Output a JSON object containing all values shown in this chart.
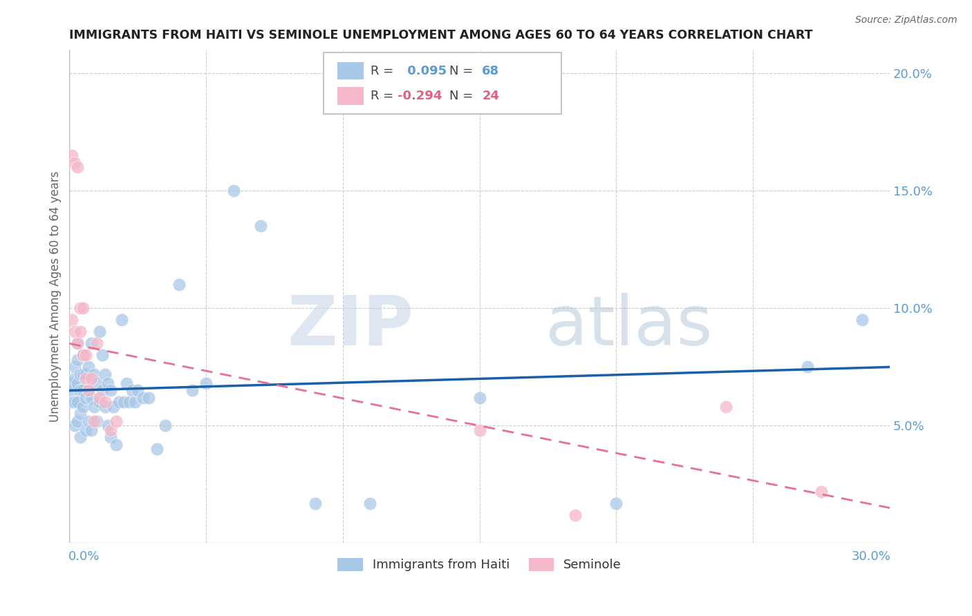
{
  "title": "IMMIGRANTS FROM HAITI VS SEMINOLE UNEMPLOYMENT AMONG AGES 60 TO 64 YEARS CORRELATION CHART",
  "source": "Source: ZipAtlas.com",
  "ylabel": "Unemployment Among Ages 60 to 64 years",
  "xmin": 0.0,
  "xmax": 0.3,
  "ymin": 0.0,
  "ymax": 0.21,
  "yticks": [
    0.05,
    0.1,
    0.15,
    0.2
  ],
  "ytick_labels": [
    "5.0%",
    "10.0%",
    "15.0%",
    "20.0%"
  ],
  "haiti_color": "#a8c8e8",
  "seminole_color": "#f4b8c8",
  "haiti_line_color": "#1a5faa",
  "seminole_line_color": "#e87090",
  "R_haiti": 0.095,
  "N_haiti": 68,
  "R_seminole": -0.294,
  "N_seminole": 24,
  "watermark_zip": "ZIP",
  "watermark_atlas": "atlas",
  "haiti_x": [
    0.001,
    0.001,
    0.001,
    0.002,
    0.002,
    0.002,
    0.002,
    0.003,
    0.003,
    0.003,
    0.003,
    0.003,
    0.004,
    0.004,
    0.004,
    0.004,
    0.005,
    0.005,
    0.005,
    0.005,
    0.006,
    0.006,
    0.006,
    0.007,
    0.007,
    0.007,
    0.008,
    0.008,
    0.008,
    0.009,
    0.009,
    0.01,
    0.01,
    0.011,
    0.011,
    0.012,
    0.012,
    0.013,
    0.013,
    0.014,
    0.014,
    0.015,
    0.015,
    0.016,
    0.017,
    0.018,
    0.019,
    0.02,
    0.021,
    0.022,
    0.023,
    0.024,
    0.025,
    0.027,
    0.029,
    0.032,
    0.035,
    0.04,
    0.045,
    0.05,
    0.06,
    0.07,
    0.09,
    0.11,
    0.15,
    0.2,
    0.27,
    0.29
  ],
  "haiti_y": [
    0.065,
    0.06,
    0.068,
    0.05,
    0.06,
    0.07,
    0.075,
    0.052,
    0.06,
    0.068,
    0.078,
    0.085,
    0.045,
    0.055,
    0.065,
    0.072,
    0.058,
    0.065,
    0.072,
    0.08,
    0.048,
    0.062,
    0.072,
    0.052,
    0.065,
    0.075,
    0.048,
    0.062,
    0.085,
    0.058,
    0.072,
    0.052,
    0.068,
    0.06,
    0.09,
    0.065,
    0.08,
    0.058,
    0.072,
    0.05,
    0.068,
    0.045,
    0.065,
    0.058,
    0.042,
    0.06,
    0.095,
    0.06,
    0.068,
    0.06,
    0.065,
    0.06,
    0.065,
    0.062,
    0.062,
    0.04,
    0.05,
    0.11,
    0.065,
    0.068,
    0.15,
    0.135,
    0.017,
    0.017,
    0.062,
    0.017,
    0.075,
    0.095
  ],
  "seminole_x": [
    0.001,
    0.001,
    0.002,
    0.002,
    0.003,
    0.003,
    0.004,
    0.004,
    0.005,
    0.005,
    0.006,
    0.006,
    0.007,
    0.008,
    0.009,
    0.01,
    0.011,
    0.013,
    0.015,
    0.017,
    0.15,
    0.185,
    0.24,
    0.275
  ],
  "seminole_y": [
    0.165,
    0.095,
    0.162,
    0.09,
    0.16,
    0.085,
    0.1,
    0.09,
    0.1,
    0.08,
    0.08,
    0.07,
    0.065,
    0.07,
    0.052,
    0.085,
    0.062,
    0.06,
    0.048,
    0.052,
    0.048,
    0.012,
    0.058,
    0.022
  ],
  "haiti_line_start_y": 0.065,
  "haiti_line_end_y": 0.075,
  "seminole_line_start_y": 0.085,
  "seminole_line_end_y": 0.015
}
